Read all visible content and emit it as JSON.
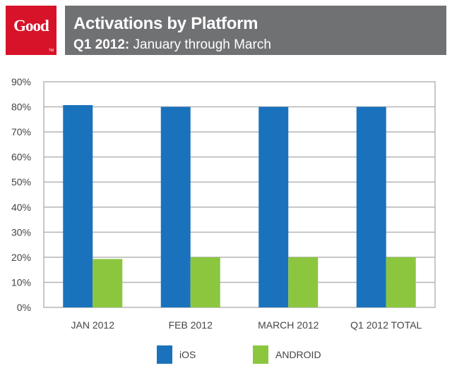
{
  "header": {
    "logo_text": "Good",
    "logo_tm": "TM",
    "title": "Activations by Platform",
    "subtitle_bold": "Q1 2012:",
    "subtitle_rest": " January through March"
  },
  "colors": {
    "logo_red": "#d7132a",
    "banner_gray": "#707173",
    "ios_blue": "#1a72bc",
    "android_green": "#8cc63f"
  },
  "chart_data": {
    "type": "bar",
    "categories": [
      "JAN 2012",
      "FEB 2012",
      "MARCH 2012",
      "Q1 2012 TOTAL"
    ],
    "series": [
      {
        "name": "iOS",
        "color": "#1a72bc",
        "values": [
          80.7,
          80.0,
          80.0,
          80.0
        ]
      },
      {
        "name": "ANDROID",
        "color": "#8cc63f",
        "values": [
          19.3,
          20.0,
          20.0,
          20.0
        ]
      }
    ],
    "ylim": [
      0,
      90
    ],
    "yticks": [
      0,
      10,
      20,
      30,
      40,
      50,
      60,
      70,
      80,
      90
    ],
    "ytick_labels": [
      "0%",
      "10%",
      "20%",
      "30%",
      "40%",
      "50%",
      "60%",
      "70%",
      "80%",
      "90%"
    ],
    "grid": true,
    "legend_position": "bottom-center"
  }
}
